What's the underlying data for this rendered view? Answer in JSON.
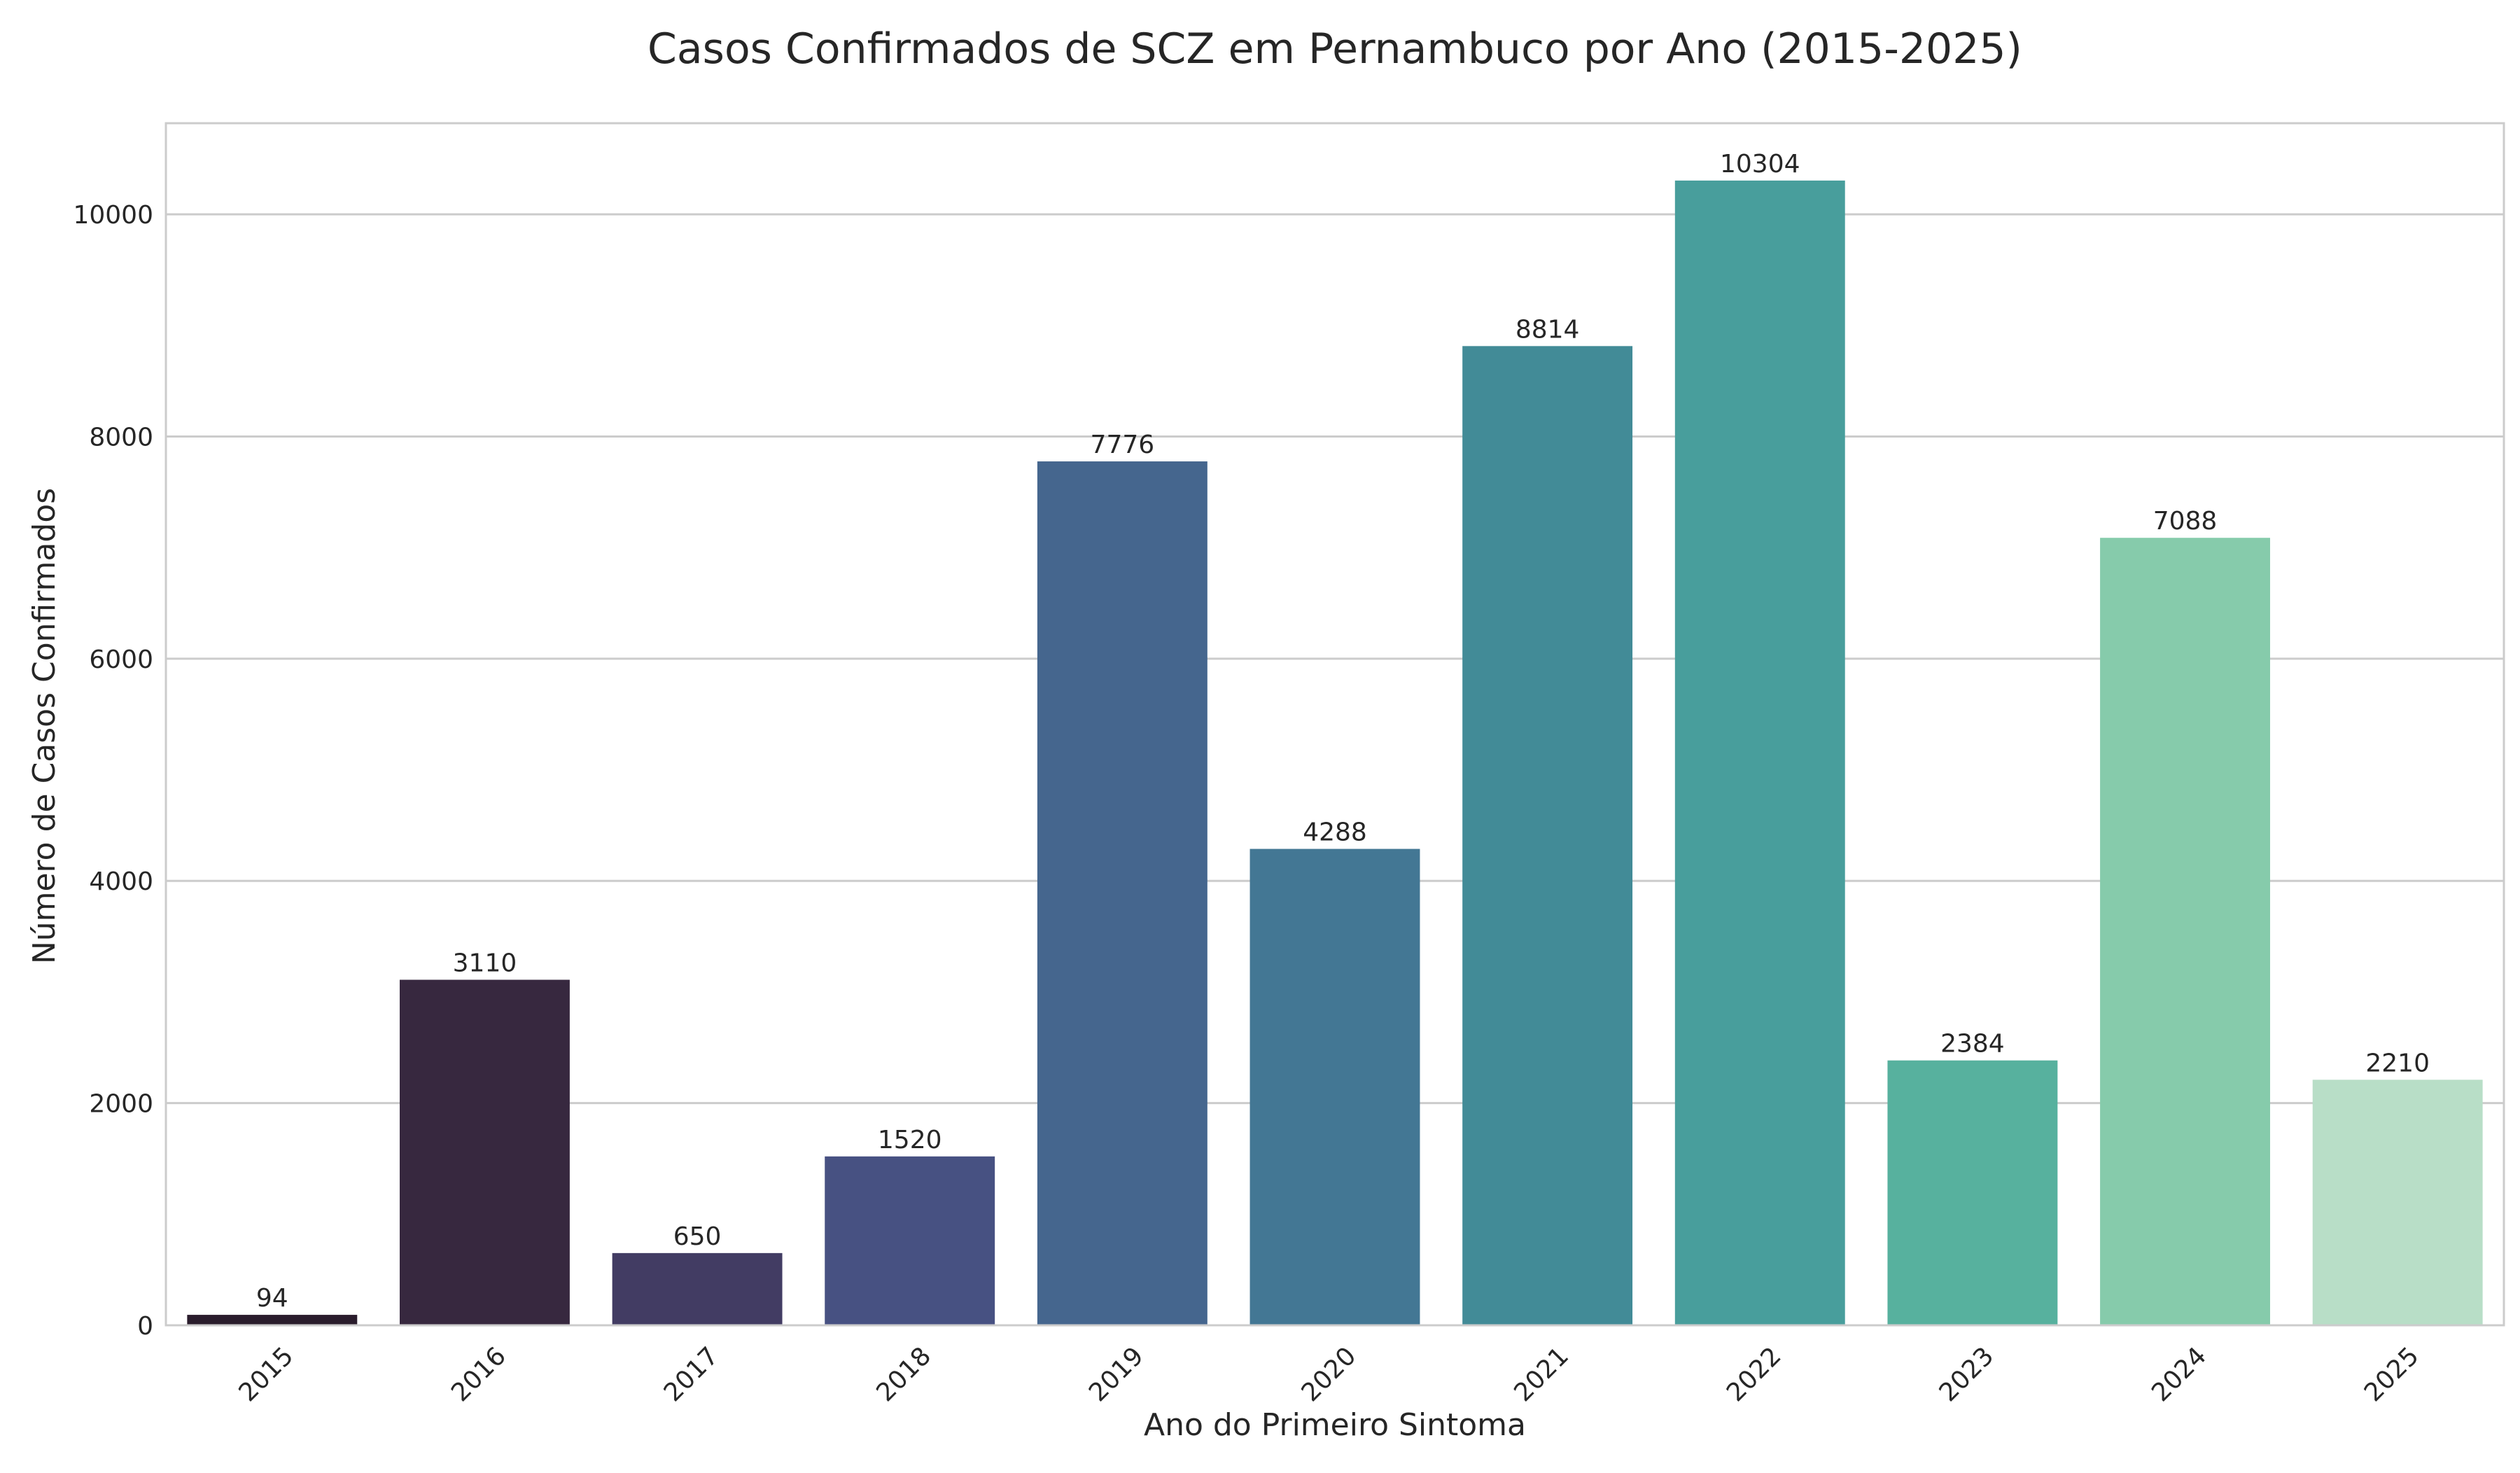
{
  "chart_data": {
    "type": "bar",
    "title": "Casos Confirmados de SCZ em Pernambuco por Ano (2015-2025)",
    "xlabel": "Ano do Primeiro Sintoma",
    "ylabel": "Número de Casos Confirmados",
    "categories": [
      "2015",
      "2016",
      "2017",
      "2018",
      "2019",
      "2020",
      "2021",
      "2022",
      "2023",
      "2024",
      "2025"
    ],
    "values": [
      94,
      3110,
      650,
      1520,
      7776,
      4288,
      8814,
      10304,
      2384,
      7088,
      2210
    ],
    "colors": [
      "#2a1c2c",
      "#37283f",
      "#423c63",
      "#475182",
      "#45668e",
      "#437794",
      "#428b97",
      "#489e9c",
      "#57b19e",
      "#86cbab",
      "#b8dec7"
    ],
    "ylim": [
      0,
      10820
    ],
    "yticks": [
      0,
      2000,
      4000,
      6000,
      8000,
      10000
    ],
    "grid": true
  }
}
